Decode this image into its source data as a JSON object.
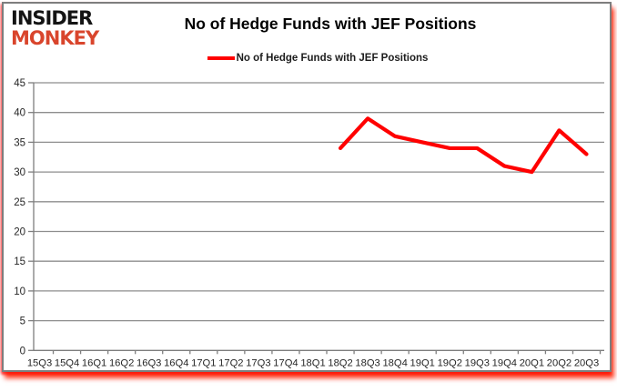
{
  "logo": {
    "line1": "INSIDER",
    "line2": "MONKEY"
  },
  "header": {
    "title": "No of Hedge Funds with JEF Positions"
  },
  "legend": {
    "label": "No of Hedge Funds with JEF Positions"
  },
  "chart_data": {
    "type": "line",
    "title": "No of Hedge Funds with JEF Positions",
    "categories": [
      "15Q3",
      "15Q4",
      "16Q1",
      "16Q2",
      "16Q3",
      "16Q4",
      "17Q1",
      "17Q2",
      "17Q3",
      "17Q4",
      "18Q1",
      "18Q2",
      "18Q3",
      "18Q4",
      "19Q1",
      "19Q2",
      "19Q3",
      "19Q4",
      "20Q1",
      "20Q2",
      "20Q3"
    ],
    "series": [
      {
        "name": "No of Hedge Funds with JEF Positions",
        "color": "#ff0000",
        "values": [
          null,
          null,
          null,
          null,
          null,
          null,
          null,
          null,
          null,
          null,
          null,
          34,
          39,
          36,
          35,
          34,
          34,
          31,
          30,
          37,
          33
        ]
      }
    ],
    "ylim": [
      0,
      45
    ],
    "ytick_step": 5,
    "grid": true,
    "legend_position": "top"
  },
  "colors": {
    "line": "#ff0000",
    "grid": "#8e8e8e",
    "axis": "#7e7e7e",
    "tick_label": "#262626",
    "logo_black": "#141414",
    "logo_red": "#d9452c",
    "shadow_red": "#ff1e00"
  }
}
